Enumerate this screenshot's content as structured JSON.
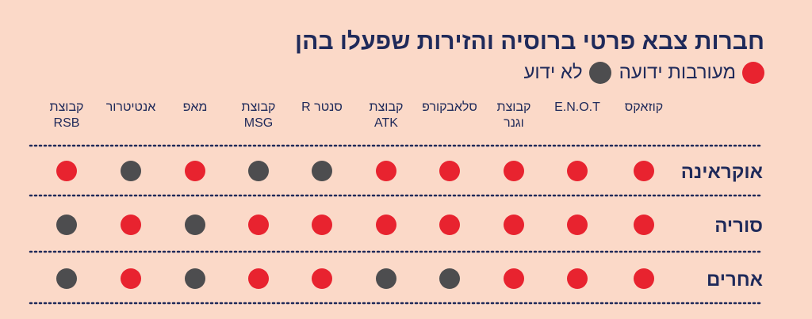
{
  "title": "חברות צבא פרטי ברוסיה והזירות שפעלו בהן",
  "legend": {
    "involved": {
      "label": "מעורבות ידועה",
      "color": "#e8232f"
    },
    "unknown": {
      "label": "לא ידוע",
      "color": "#4d4d4f"
    }
  },
  "chart_data": {
    "type": "table",
    "title": "חברות צבא פרטי ברוסיה והזירות שפעלו בהן",
    "columns": [
      [
        "קוזאקס"
      ],
      [
        "E.N.O.T"
      ],
      [
        "קבוצת",
        "וגנר"
      ],
      [
        "סלאבקורפ"
      ],
      [
        "קבוצת",
        "ATK"
      ],
      [
        "סנטר R"
      ],
      [
        "קבוצת",
        "MSG"
      ],
      [
        "מאפ"
      ],
      [
        "אנטיטרור"
      ],
      [
        "קבוצת",
        "RSB"
      ]
    ],
    "rows": [
      {
        "label": "אוקראינה",
        "values": [
          "involved",
          "involved",
          "involved",
          "involved",
          "involved",
          "unknown",
          "unknown",
          "involved",
          "unknown",
          "involved"
        ]
      },
      {
        "label": "סוריה",
        "values": [
          "involved",
          "involved",
          "involved",
          "involved",
          "involved",
          "involved",
          "involved",
          "unknown",
          "involved",
          "unknown"
        ]
      },
      {
        "label": "אחרים",
        "values": [
          "involved",
          "involved",
          "involved",
          "unknown",
          "unknown",
          "involved",
          "involved",
          "unknown",
          "involved",
          "unknown"
        ]
      }
    ]
  }
}
